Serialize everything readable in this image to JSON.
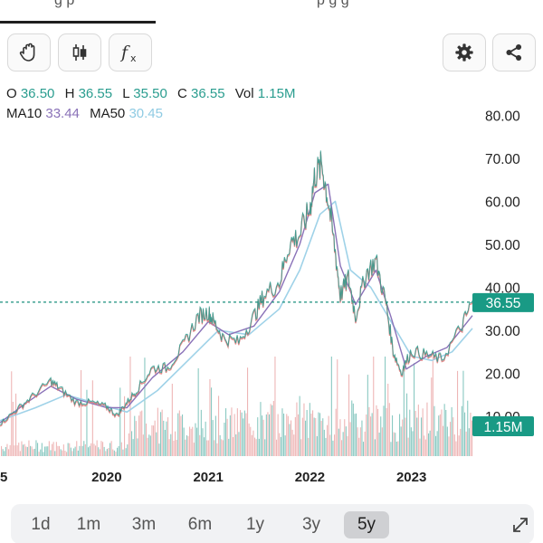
{
  "header": {
    "tabs": [
      {
        "label": "g p"
      },
      {
        "label": "p  g  g"
      }
    ]
  },
  "toolbar": {
    "buttons": [
      {
        "name": "hand-pan-icon"
      },
      {
        "name": "candlestick-icon"
      },
      {
        "name": "function-icon",
        "glyph": "fx"
      },
      {
        "name": "gear-icon"
      },
      {
        "name": "share-icon"
      }
    ]
  },
  "readout": {
    "o_label": "O",
    "o_value": "36.50",
    "h_label": "H",
    "h_value": "36.55",
    "l_label": "L",
    "l_value": "35.50",
    "c_label": "C",
    "c_value": "36.55",
    "vol_label": "Vol",
    "vol_value": "1.15M",
    "ma10_label": "MA10",
    "ma10_value": "33.44",
    "ma50_label": "MA50",
    "ma50_value": "30.45"
  },
  "colors": {
    "up": "#2a9d8f",
    "down": "#e07a7a",
    "ma10": "#8a72b8",
    "ma50": "#9fd2e8",
    "price_line": "#1a8f7c",
    "badge": "#199a85",
    "grid_text": "#222222"
  },
  "chart_data": {
    "type": "line",
    "title": "",
    "y_ticks": [
      "80.00",
      "70.00",
      "60.00",
      "50.00",
      "40.00",
      "30.00",
      "20.00",
      "10.00"
    ],
    "y_tick_values": [
      80,
      70,
      60,
      50,
      40,
      30,
      20,
      10
    ],
    "ylim": [
      0,
      80
    ],
    "x_ticks": [
      "5",
      "2020",
      "2021",
      "2022",
      "2023"
    ],
    "x_tick_values": [
      2019.0,
      2020.0,
      2021.0,
      2022.0,
      2023.0
    ],
    "xlim": [
      2018.95,
      2023.6
    ],
    "current_price": 36.55,
    "current_price_label": "36.55",
    "current_volume_label": "1.15M",
    "series": [
      {
        "name": "price",
        "x": [
          2018.95,
          2019.1,
          2019.25,
          2019.45,
          2019.55,
          2019.7,
          2019.85,
          2020.0,
          2020.1,
          2020.2,
          2020.3,
          2020.45,
          2020.6,
          2020.75,
          2020.9,
          2021.0,
          2021.05,
          2021.15,
          2021.3,
          2021.45,
          2021.55,
          2021.7,
          2021.8,
          2021.9,
          2022.0,
          2022.05,
          2022.12,
          2022.18,
          2022.25,
          2022.3,
          2022.38,
          2022.45,
          2022.55,
          2022.65,
          2022.75,
          2022.82,
          2022.9,
          2023.0,
          2023.15,
          2023.3,
          2023.5,
          2023.6
        ],
        "y": [
          8,
          11,
          14,
          18,
          16,
          13,
          13,
          12,
          10,
          13,
          16,
          21,
          21,
          26,
          33,
          34,
          32,
          28,
          27,
          33,
          38,
          41,
          50,
          52,
          58,
          66,
          68,
          60,
          48,
          38,
          42,
          33,
          43,
          46,
          36,
          25,
          20,
          25,
          24,
          23,
          31,
          36.55
        ]
      },
      {
        "name": "MA10",
        "x": [
          2018.95,
          2019.2,
          2019.45,
          2019.7,
          2020.0,
          2020.2,
          2020.45,
          2020.75,
          2021.0,
          2021.2,
          2021.45,
          2021.7,
          2021.9,
          2022.05,
          2022.18,
          2022.3,
          2022.45,
          2022.65,
          2022.8,
          2022.95,
          2023.15,
          2023.35,
          2023.6
        ],
        "y": [
          8.5,
          13,
          17,
          14,
          12,
          12,
          19,
          25,
          32,
          29,
          31,
          39,
          50,
          62,
          64,
          45,
          36,
          44,
          33,
          21,
          24,
          26,
          33.44
        ]
      },
      {
        "name": "MA50",
        "x": [
          2018.95,
          2019.3,
          2019.6,
          2019.9,
          2020.2,
          2020.5,
          2020.8,
          2021.1,
          2021.4,
          2021.7,
          2021.9,
          2022.1,
          2022.25,
          2022.4,
          2022.6,
          2022.8,
          2023.0,
          2023.2,
          2023.4,
          2023.6
        ],
        "y": [
          9,
          12,
          15,
          13,
          11,
          16,
          23,
          30,
          29,
          35,
          44,
          57,
          60,
          44,
          40,
          32,
          24,
          23,
          25,
          30.45
        ]
      }
    ]
  },
  "ranges": {
    "items": [
      {
        "label": "1d",
        "active": false
      },
      {
        "label": "1m",
        "active": false
      },
      {
        "label": "3m",
        "active": false
      },
      {
        "label": "6m",
        "active": false
      },
      {
        "label": "1y",
        "active": false
      },
      {
        "label": "3y",
        "active": false
      },
      {
        "label": "5y",
        "active": true
      }
    ]
  }
}
